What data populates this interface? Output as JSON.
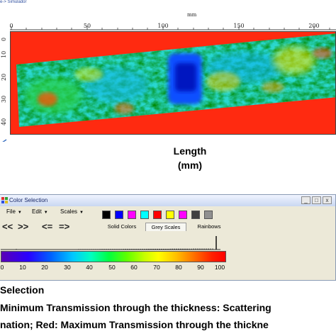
{
  "scan": {
    "title": "e-> Simulador",
    "axis_unit": "mm",
    "x_ticks": [
      "0",
      "50",
      "100",
      "150",
      "200"
    ],
    "y_ticks": [
      "0",
      "10",
      "20",
      "30",
      "40"
    ]
  },
  "length_label": [
    "Length",
    "(mm)"
  ],
  "dialog": {
    "title": "Color Selection",
    "window_buttons": [
      "_",
      "□",
      "x"
    ],
    "menu": [
      "File",
      "Edit",
      "Scales"
    ],
    "swatch_colors": [
      "#000000",
      "#0000ff",
      "#ff00ff",
      "#00ffff",
      "#ff0000",
      "#ffff00",
      "#ff00ff",
      "#404040",
      "#909090"
    ],
    "nav_buttons": [
      "<<",
      ">>",
      "<=",
      "=>"
    ],
    "tabs": [
      "Solid Colors",
      "Grey Scales",
      "Rainbows"
    ],
    "active_tab": "Grey Scales",
    "scale_ticks": [
      "0",
      "10",
      "20",
      "30",
      "40",
      "50",
      "60",
      "70",
      "80",
      "90",
      "100"
    ]
  },
  "caption": {
    "line1": "Selection",
    "line2": "Minimum Transmission through the thickness: Scattering",
    "line3": "nation; Red: Maximum Transmission through the thickne"
  }
}
